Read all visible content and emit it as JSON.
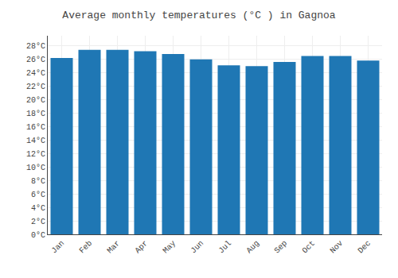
{
  "chart_data": {
    "type": "bar",
    "title": "Average monthly temperatures (°C ) in Gagnoa",
    "categories": [
      "Jan",
      "Feb",
      "Mar",
      "Apr",
      "May",
      "Jun",
      "Jul",
      "Aug",
      "Sep",
      "Oct",
      "Nov",
      "Dec"
    ],
    "values": [
      26.2,
      27.4,
      27.4,
      27.2,
      26.8,
      26.0,
      25.1,
      25.0,
      25.6,
      26.5,
      26.5,
      25.8
    ],
    "ylim": [
      0,
      29.5
    ],
    "yticks": [
      {
        "value": 0,
        "label": "0°C"
      },
      {
        "value": 2,
        "label": "2°C"
      },
      {
        "value": 4,
        "label": "4°C"
      },
      {
        "value": 6,
        "label": "6°C"
      },
      {
        "value": 8,
        "label": "8°C"
      },
      {
        "value": 10,
        "label": "10°C"
      },
      {
        "value": 12,
        "label": "12°C"
      },
      {
        "value": 14,
        "label": "14°C"
      },
      {
        "value": 16,
        "label": "16°C"
      },
      {
        "value": 18,
        "label": "18°C"
      },
      {
        "value": 20,
        "label": "20°C"
      },
      {
        "value": 22,
        "label": "22°C"
      },
      {
        "value": 24,
        "label": "24°C"
      },
      {
        "value": 26,
        "label": "26°C"
      },
      {
        "value": 28,
        "label": "28°C"
      }
    ],
    "grid": true
  }
}
